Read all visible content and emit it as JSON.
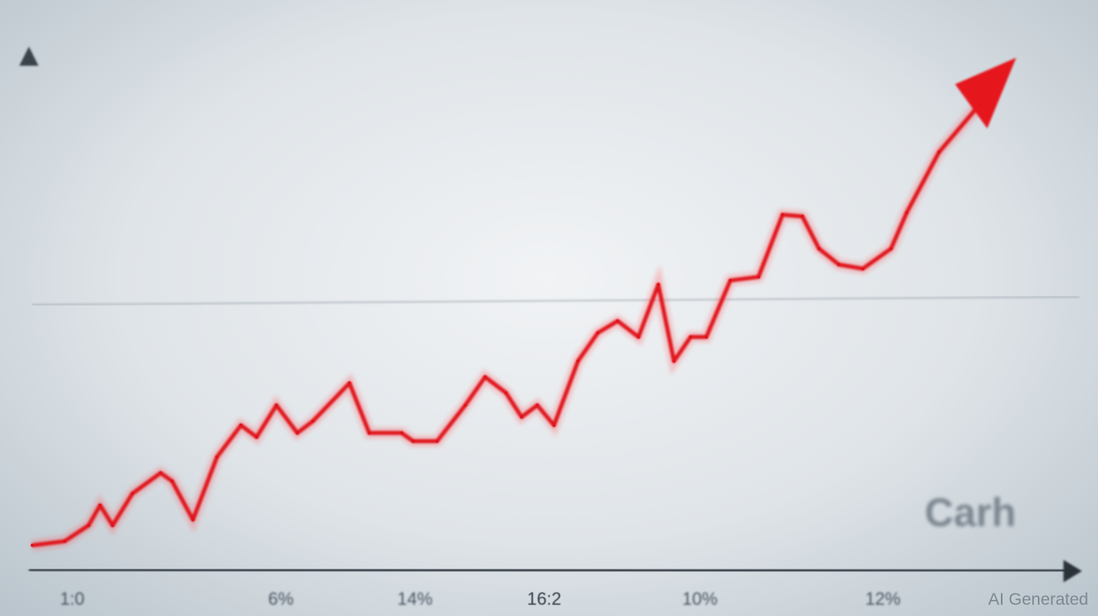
{
  "chart_data": {
    "type": "line",
    "title": "",
    "xlabel": "",
    "ylabel": "",
    "x_tick_labels": [
      "1:0",
      "6%",
      "14%",
      "16:2",
      "10%",
      "12%"
    ],
    "corner_label": "Carh",
    "line_color": "#e0141e",
    "grid": true,
    "x": [
      0.4,
      3.5,
      5.8,
      6.9,
      8.1,
      10,
      12.7,
      13.8,
      15.8,
      18.1,
      20.4,
      21.9,
      23.8,
      25.8,
      27.3,
      30.8,
      32.7,
      35.8,
      36.9,
      39.2,
      41.9,
      43.8,
      45.8,
      47.3,
      48.8,
      50.4,
      52.7,
      54.6,
      56.5,
      58.5,
      60.4,
      61.9,
      63.5,
      65,
      67.3,
      70,
      72.3,
      74.2,
      75.8,
      77.7,
      80,
      82.7,
      84.2,
      87.3,
      91.2
    ],
    "y": [
      4.7,
      5.5,
      8.6,
      12.5,
      8.6,
      14.8,
      18.8,
      17.2,
      9.7,
      21.9,
      28.1,
      25.8,
      32.0,
      26.6,
      28.9,
      36.3,
      26.6,
      26.6,
      25.0,
      25.0,
      32.0,
      37.5,
      34.4,
      29.7,
      32.0,
      28.1,
      40.6,
      46.1,
      48.4,
      45.3,
      55.5,
      40.6,
      45.3,
      45.3,
      56.3,
      57.0,
      69.1,
      68.8,
      62.5,
      59.4,
      58.6,
      62.5,
      69.5,
      81.3,
      90.6
    ],
    "trend": "up-arrow"
  },
  "watermark": "AI Generated"
}
